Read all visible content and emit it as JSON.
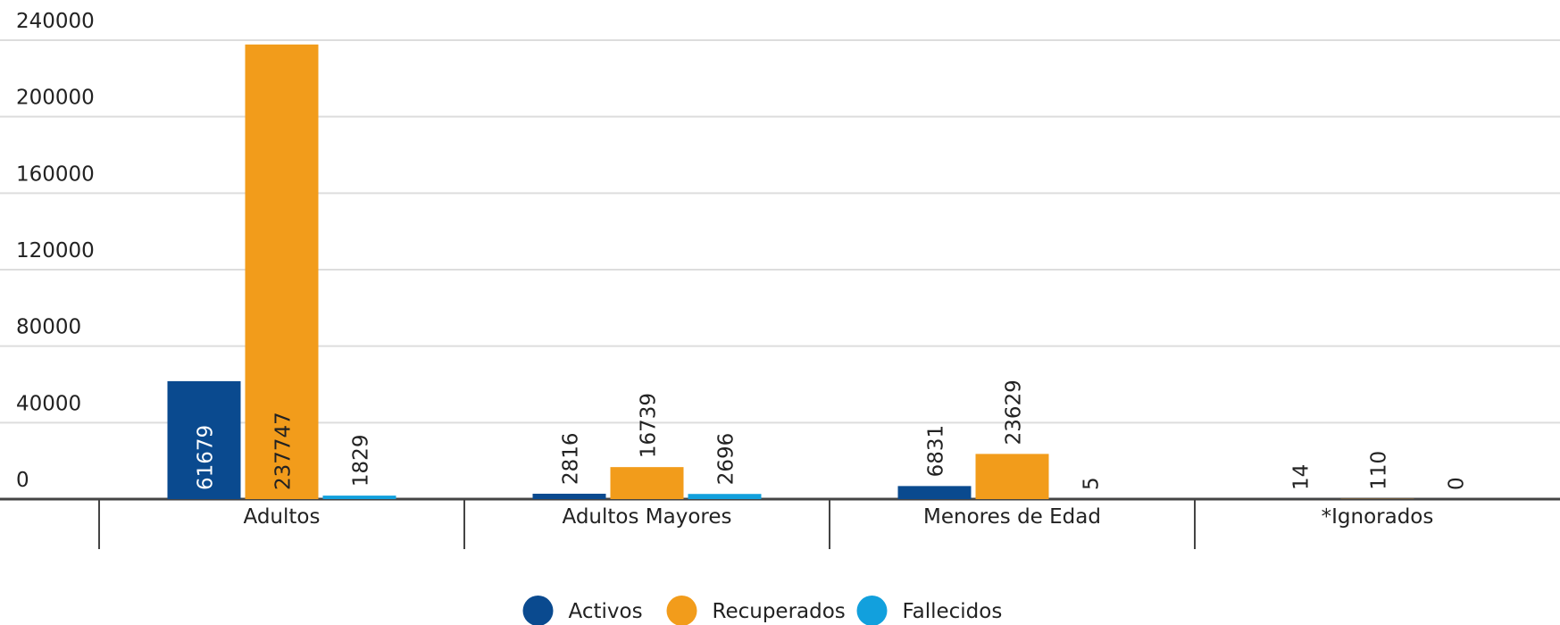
{
  "chart_data": {
    "type": "bar",
    "categories": [
      "Adultos",
      "Adultos Mayores",
      "Menores de Edad",
      "*Ignorados"
    ],
    "series": [
      {
        "name": "Activos",
        "color": "#0a4a8f",
        "values": [
          61679,
          2816,
          6831,
          14
        ]
      },
      {
        "name": "Recuperados",
        "color": "#f29c1b",
        "values": [
          237747,
          16739,
          23629,
          110
        ]
      },
      {
        "name": "Fallecidos",
        "color": "#12a0dd",
        "values": [
          1829,
          2696,
          5,
          0
        ]
      }
    ],
    "ylim": [
      0,
      240000
    ],
    "yticks": [
      0,
      40000,
      80000,
      120000,
      160000,
      200000,
      240000
    ],
    "grid": true,
    "legend": "bottom"
  }
}
